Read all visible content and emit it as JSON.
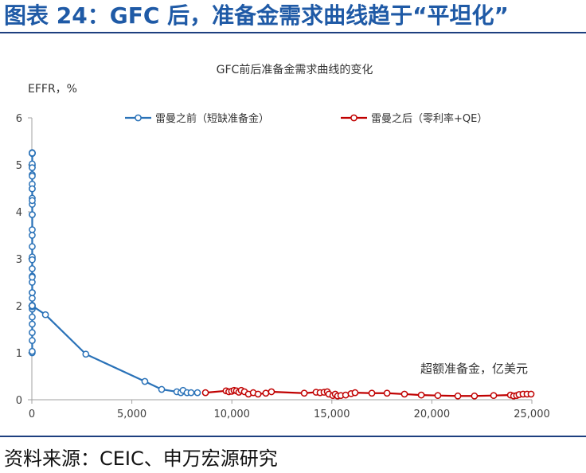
{
  "header": {
    "title": "图表 24：GFC 后，准备金需求曲线趋于“平坦化”"
  },
  "chart_data": {
    "type": "line",
    "title": "GFC前后准备金需求曲线的变化",
    "xlabel": "超额准备金，亿美元",
    "ylabel": "EFFR，%",
    "xlim": [
      0,
      25000
    ],
    "ylim": [
      0,
      6
    ],
    "xticks": [
      0,
      5000,
      10000,
      15000,
      20000,
      25000
    ],
    "xtick_labels": [
      "0",
      "5,000",
      "10,000",
      "15,000",
      "20,000",
      "25,000"
    ],
    "yticks": [
      0,
      1,
      2,
      3,
      4,
      5,
      6
    ],
    "ytick_labels": [
      "0",
      "1",
      "2",
      "3",
      "4",
      "5",
      "6"
    ],
    "grid": false,
    "legend": "top",
    "series": [
      {
        "name": "雷曼之前（短缺准备金）",
        "color": "#2a72b8",
        "points": [
          [
            16,
            1.0
          ],
          [
            17,
            1.03
          ],
          [
            18,
            1.26
          ],
          [
            17,
            1.43
          ],
          [
            19,
            1.61
          ],
          [
            18,
            1.76
          ],
          [
            20,
            1.93
          ],
          [
            19,
            2.16
          ],
          [
            18,
            2.28
          ],
          [
            17,
            2.5
          ],
          [
            19,
            2.63
          ],
          [
            18,
            2.79
          ],
          [
            20,
            3.0
          ],
          [
            19,
            3.04
          ],
          [
            18,
            3.26
          ],
          [
            17,
            3.5
          ],
          [
            19,
            3.62
          ],
          [
            18,
            3.94
          ],
          [
            20,
            4.16
          ],
          [
            19,
            4.29
          ],
          [
            18,
            4.49
          ],
          [
            17,
            4.59
          ],
          [
            19,
            4.79
          ],
          [
            18,
            4.94
          ],
          [
            20,
            4.99
          ],
          [
            19,
            5.24
          ],
          [
            18,
            5.25
          ],
          [
            17,
            5.25
          ],
          [
            19,
            5.25
          ],
          [
            18,
            5.26
          ],
          [
            20,
            5.25
          ],
          [
            19,
            5.25
          ],
          [
            18,
            5.02
          ],
          [
            17,
            4.94
          ],
          [
            19,
            4.76
          ],
          [
            18,
            4.49
          ],
          [
            20,
            4.24
          ],
          [
            19,
            3.94
          ],
          [
            18,
            2.98
          ],
          [
            17,
            2.61
          ],
          [
            19,
            2.28
          ],
          [
            18,
            1.98
          ],
          [
            20,
            2.0
          ],
          [
            19,
            2.01
          ],
          [
            18,
            2.0
          ],
          [
            680,
            1.81
          ],
          [
            2700,
            0.97
          ],
          [
            5650,
            0.39
          ],
          [
            6490,
            0.22
          ],
          [
            7250,
            0.17
          ],
          [
            7450,
            0.15
          ],
          [
            7560,
            0.2
          ],
          [
            7760,
            0.15
          ],
          [
            7960,
            0.15
          ],
          [
            8280,
            0.15
          ]
        ]
      },
      {
        "name": "雷曼之后（零利率+QE）",
        "color": "#c00000",
        "points": [
          [
            8680,
            0.15
          ],
          [
            9710,
            0.19
          ],
          [
            9850,
            0.17
          ],
          [
            9990,
            0.18
          ],
          [
            10110,
            0.2
          ],
          [
            10230,
            0.19
          ],
          [
            10350,
            0.16
          ],
          [
            10470,
            0.2
          ],
          [
            10630,
            0.17
          ],
          [
            10830,
            0.12
          ],
          [
            11070,
            0.15
          ],
          [
            11310,
            0.12
          ],
          [
            11700,
            0.14
          ],
          [
            11980,
            0.17
          ],
          [
            13620,
            0.14
          ],
          [
            14210,
            0.16
          ],
          [
            14410,
            0.15
          ],
          [
            14610,
            0.16
          ],
          [
            14770,
            0.17
          ],
          [
            14850,
            0.12
          ],
          [
            15050,
            0.09
          ],
          [
            15170,
            0.12
          ],
          [
            15290,
            0.08
          ],
          [
            15450,
            0.09
          ],
          [
            15690,
            0.1
          ],
          [
            15960,
            0.13
          ],
          [
            16160,
            0.15
          ],
          [
            17000,
            0.14
          ],
          [
            17760,
            0.14
          ],
          [
            18630,
            0.12
          ],
          [
            19470,
            0.1
          ],
          [
            20300,
            0.09
          ],
          [
            21300,
            0.08
          ],
          [
            22130,
            0.08
          ],
          [
            23090,
            0.09
          ],
          [
            23930,
            0.1
          ],
          [
            24090,
            0.08
          ],
          [
            24240,
            0.09
          ],
          [
            24360,
            0.11
          ],
          [
            24560,
            0.12
          ],
          [
            24760,
            0.12
          ],
          [
            24960,
            0.12
          ]
        ]
      }
    ]
  },
  "footer": {
    "source": "资料来源：CEIC、申万宏源研究"
  }
}
